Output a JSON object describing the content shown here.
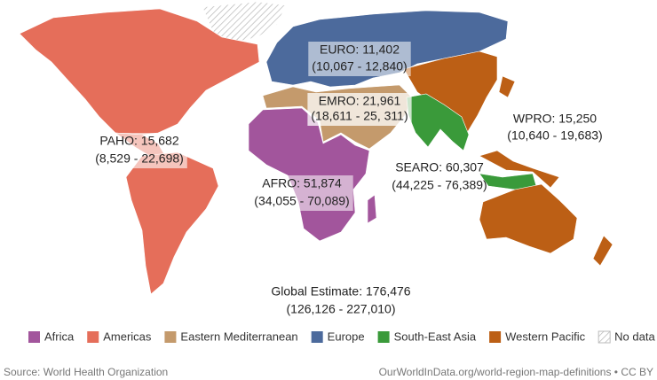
{
  "map": {
    "labels": [
      {
        "label": "EURO: 11,402",
        "range": "(10,067 - 12,840)"
      },
      {
        "label": "EMRO: 21,961",
        "range": "(18,611 - 25, 311)"
      },
      {
        "label": "WPRO: 15,250",
        "range": "(10,640 - 19,683)"
      },
      {
        "label": "PAHO: 15,682",
        "range": "(8,529 - 22,698)"
      },
      {
        "label": "SEARO: 60,307",
        "range": "(44,225 - 76,389)"
      },
      {
        "label": "AFRO: 51,874",
        "range": "(34,055 - 70,089)"
      }
    ],
    "global": {
      "label": "Global Estimate: 176,476",
      "range": "(126,126 - 227,010)"
    },
    "legend": [
      {
        "name": "Africa",
        "color": "#a2559c"
      },
      {
        "name": "Americas",
        "color": "#e56e5a"
      },
      {
        "name": "Eastern Mediterranean",
        "color": "#c49a6c"
      },
      {
        "name": "Europe",
        "color": "#4c6a9c"
      },
      {
        "name": "South-East Asia",
        "color": "#3a9a3a"
      },
      {
        "name": "Western Pacific",
        "color": "#bc5f15"
      },
      {
        "name": "No data",
        "color": "hatch"
      }
    ],
    "source": "Source: World Health Organization",
    "credit": "OurWorldInData.org/world-region-map-definitions • CC BY"
  }
}
